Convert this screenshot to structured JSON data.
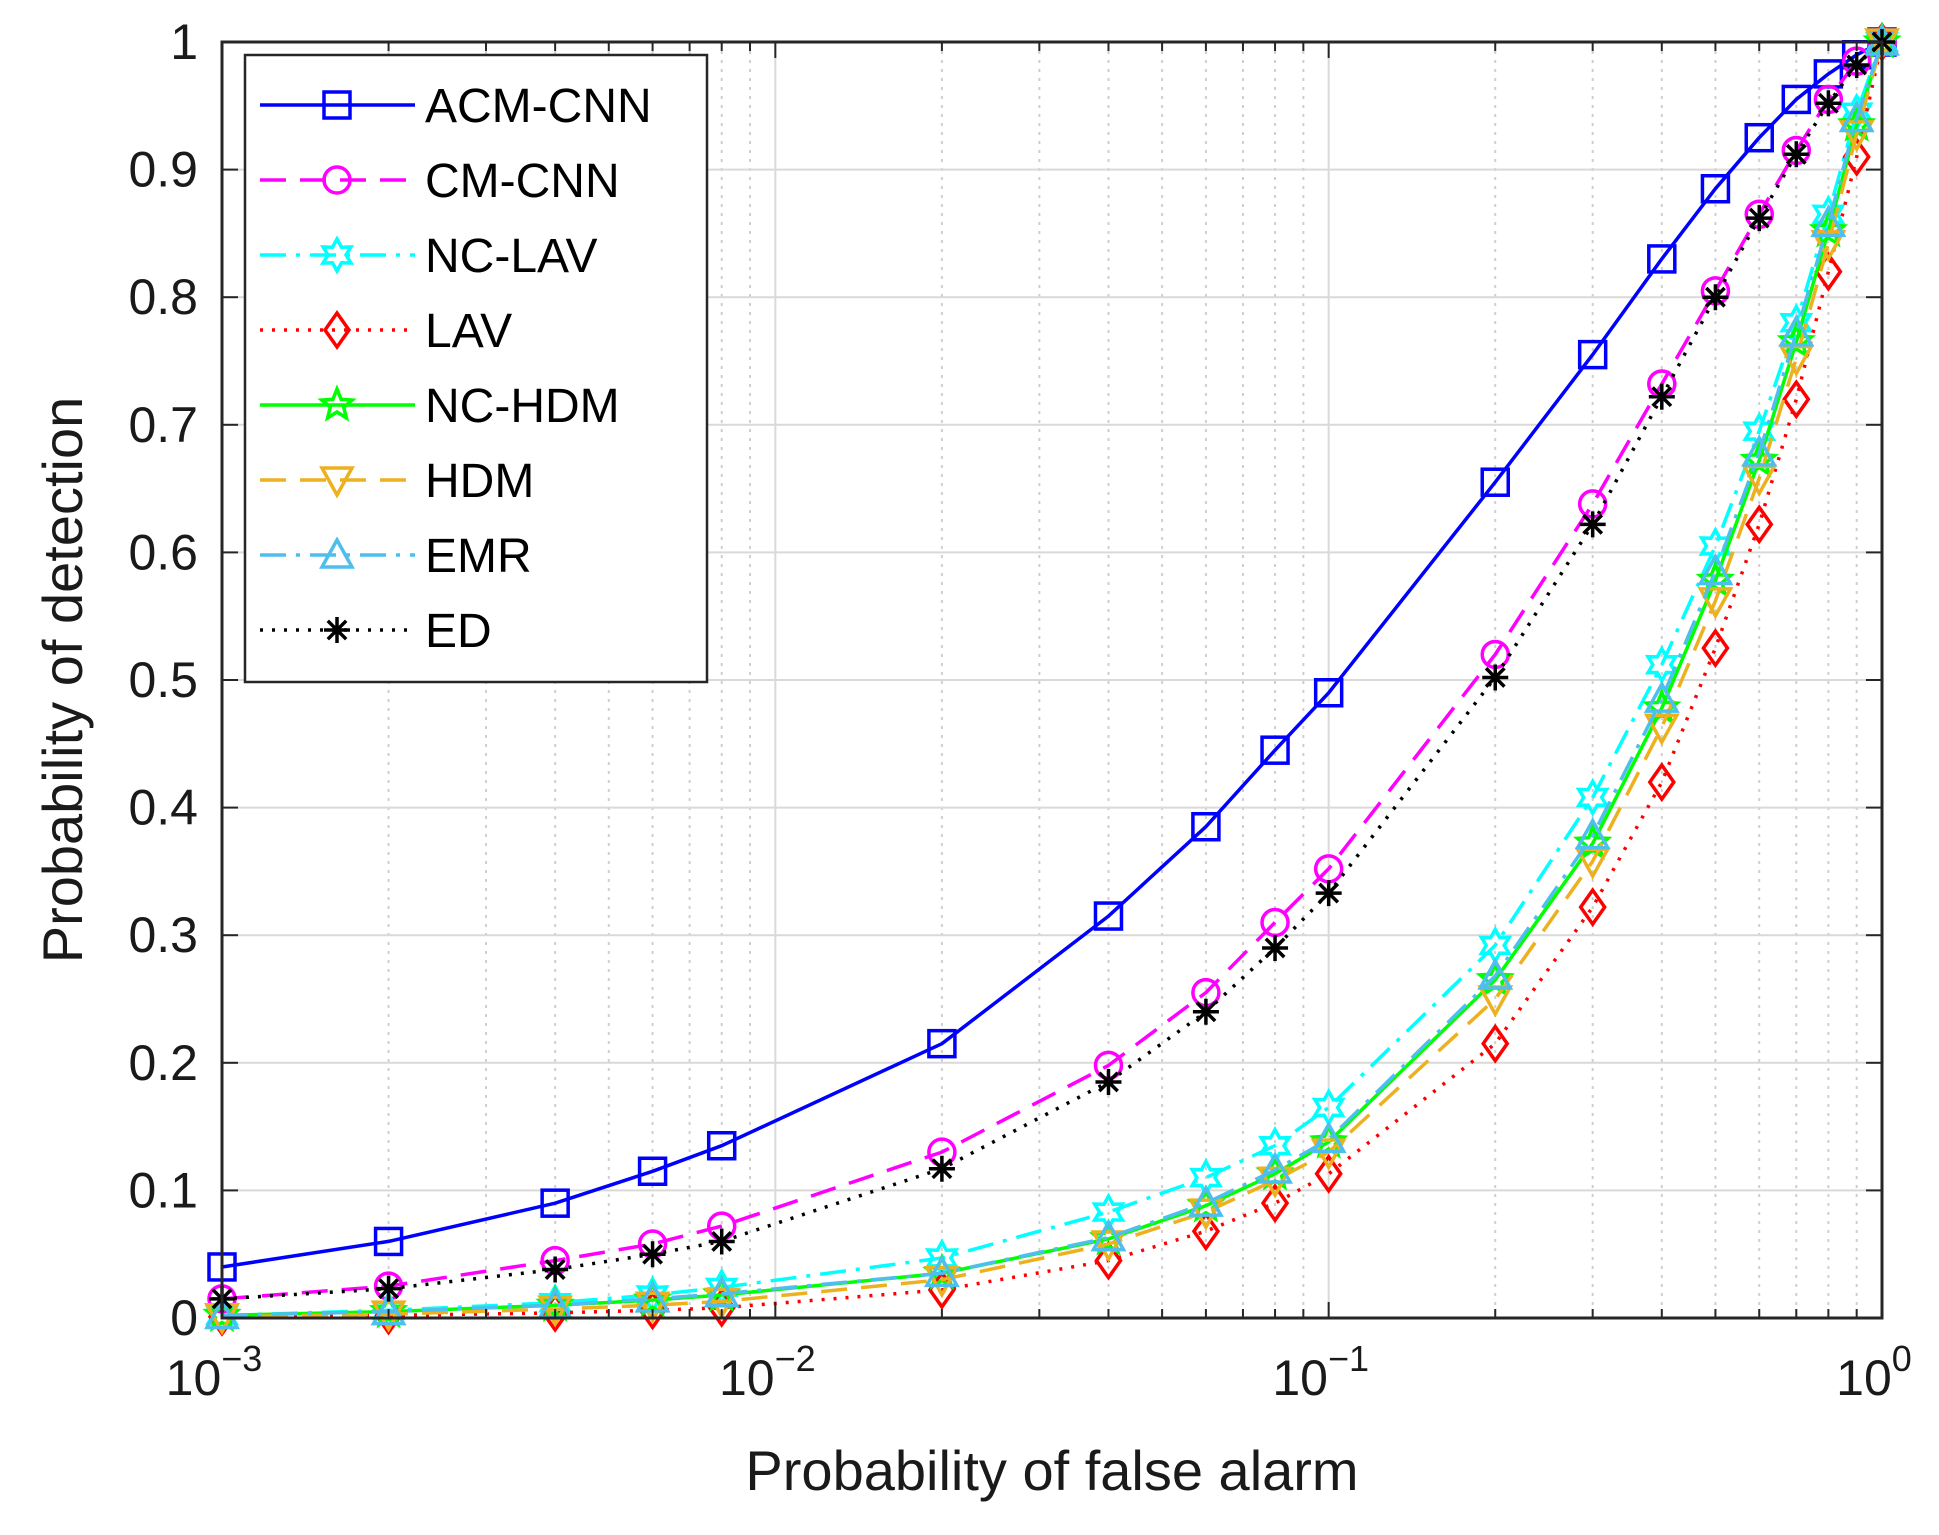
{
  "chart_data": {
    "type": "line",
    "title": "",
    "xlabel": "Probability of false alarm",
    "ylabel": "Probability of detection",
    "xscale": "log",
    "xlim": [
      0.001,
      1
    ],
    "ylim": [
      0,
      1
    ],
    "grid": true,
    "legend_position": "top-left",
    "x_ticks": [
      {
        "base": "10",
        "exp": "−3"
      },
      {
        "base": "10",
        "exp": "−2"
      },
      {
        "base": "10",
        "exp": "−1"
      },
      {
        "base": "10",
        "exp": "0"
      }
    ],
    "y_ticks": [
      "0",
      "0.1",
      "0.2",
      "0.3",
      "0.4",
      "0.5",
      "0.6",
      "0.7",
      "0.8",
      "0.9",
      "1"
    ],
    "x": [
      0.001,
      0.002,
      0.004,
      0.006,
      0.008,
      0.02,
      0.04,
      0.06,
      0.08,
      0.1,
      0.2,
      0.3,
      0.4,
      0.5,
      0.6,
      0.7,
      0.8,
      0.9,
      1.0
    ],
    "series": [
      {
        "name": "ACM-CNN",
        "color": "#0000FF",
        "dash": "solid",
        "marker": "square",
        "values": [
          0.04,
          0.06,
          0.09,
          0.115,
          0.135,
          0.215,
          0.315,
          0.385,
          0.445,
          0.49,
          0.655,
          0.755,
          0.83,
          0.885,
          0.925,
          0.955,
          0.975,
          0.99,
          1.0
        ]
      },
      {
        "name": "CM-CNN",
        "color": "#FF00FF",
        "dash": "dash",
        "marker": "circle",
        "values": [
          0.015,
          0.025,
          0.045,
          0.058,
          0.072,
          0.13,
          0.198,
          0.255,
          0.31,
          0.352,
          0.52,
          0.638,
          0.732,
          0.805,
          0.865,
          0.915,
          0.955,
          0.985,
          1.0
        ]
      },
      {
        "name": "NC-LAV",
        "color": "#00FFFF",
        "dash": "dashdot",
        "marker": "hexagram",
        "values": [
          0.002,
          0.006,
          0.012,
          0.018,
          0.024,
          0.047,
          0.083,
          0.11,
          0.135,
          0.165,
          0.292,
          0.408,
          0.512,
          0.605,
          0.695,
          0.78,
          0.865,
          0.945,
          1.0
        ]
      },
      {
        "name": "LAV",
        "color": "#FF0000",
        "dash": "dot",
        "marker": "diamond",
        "values": [
          0.001,
          0.002,
          0.004,
          0.006,
          0.008,
          0.022,
          0.045,
          0.068,
          0.09,
          0.113,
          0.215,
          0.322,
          0.42,
          0.525,
          0.622,
          0.72,
          0.82,
          0.91,
          1.0
        ]
      },
      {
        "name": "NC-HDM",
        "color": "#00FF00",
        "dash": "solid",
        "marker": "pentagram",
        "values": [
          0.002,
          0.005,
          0.01,
          0.014,
          0.018,
          0.035,
          0.062,
          0.088,
          0.113,
          0.138,
          0.265,
          0.372,
          0.478,
          0.578,
          0.672,
          0.765,
          0.852,
          0.935,
          1.0
        ]
      },
      {
        "name": "HDM",
        "color": "#EDB120",
        "dash": "dash",
        "marker": "triangle-down",
        "values": [
          0.001,
          0.003,
          0.007,
          0.01,
          0.013,
          0.03,
          0.058,
          0.083,
          0.108,
          0.13,
          0.25,
          0.358,
          0.463,
          0.562,
          0.658,
          0.752,
          0.842,
          0.928,
          1.0
        ]
      },
      {
        "name": "EMR",
        "color": "#4DBEEE",
        "dash": "dashdot",
        "marker": "triangle-up",
        "values": [
          0.002,
          0.005,
          0.01,
          0.015,
          0.019,
          0.035,
          0.063,
          0.09,
          0.116,
          0.14,
          0.268,
          0.378,
          0.485,
          0.585,
          0.678,
          0.772,
          0.858,
          0.94,
          1.0
        ]
      },
      {
        "name": "ED",
        "color": "#000000",
        "dash": "dot",
        "marker": "asterisk",
        "values": [
          0.015,
          0.023,
          0.038,
          0.05,
          0.06,
          0.117,
          0.185,
          0.24,
          0.29,
          0.333,
          0.502,
          0.622,
          0.722,
          0.8,
          0.862,
          0.912,
          0.952,
          0.982,
          1.0
        ]
      }
    ]
  }
}
